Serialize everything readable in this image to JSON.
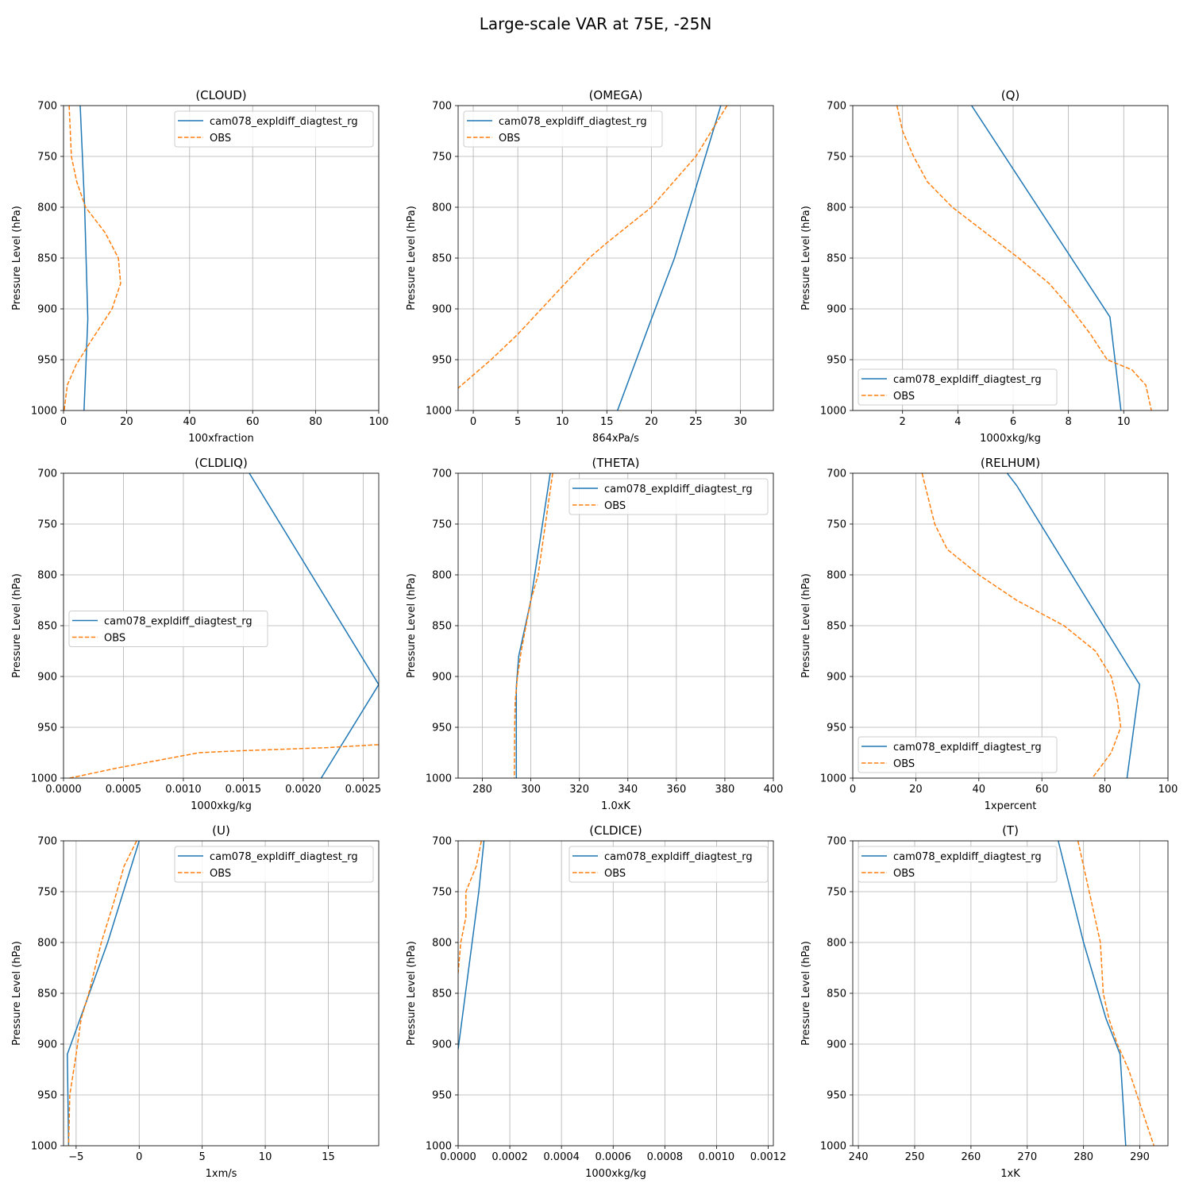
{
  "figure": {
    "title": "Large-scale VAR at 75E, -25N"
  },
  "chart_data": [
    {
      "type": "line",
      "title": "(CLOUD)",
      "xlabel": "100xfraction",
      "ylabel": "Pressure Level (hPa)",
      "xlim": [
        0,
        100
      ],
      "ylim": [
        1000,
        700
      ],
      "xticks": [
        0,
        20,
        40,
        60,
        80,
        100
      ],
      "yticks": [
        700,
        750,
        800,
        850,
        900,
        950,
        1000
      ],
      "grid": true,
      "legend_loc": "upper right",
      "series": [
        {
          "name": "cam078_expldiff_diagtest_rg",
          "color": "#1f77b4",
          "dash": "solid",
          "points": [
            [
              5.3,
              700
            ],
            [
              6.7,
              800
            ],
            [
              7.7,
              910
            ],
            [
              6.5,
              1000
            ]
          ]
        },
        {
          "name": "OBS",
          "color": "#ff7f0e",
          "dash": "dashed",
          "points": [
            [
              1.8,
              700
            ],
            [
              2.5,
              750
            ],
            [
              4.2,
              775
            ],
            [
              7.0,
              800
            ],
            [
              13.2,
              825
            ],
            [
              17.4,
              850
            ],
            [
              18.1,
              875
            ],
            [
              15.4,
              900
            ],
            [
              8.0,
              935
            ],
            [
              4.0,
              955
            ],
            [
              1.2,
              975
            ],
            [
              0.2,
              1000
            ]
          ]
        }
      ]
    },
    {
      "type": "line",
      "title": "(OMEGA)",
      "xlabel": "864xPa/s",
      "ylabel": "Pressure Level (hPa)",
      "xlim": [
        -1.7,
        33.7
      ],
      "ylim": [
        1000,
        700
      ],
      "xticks": [
        0,
        5,
        10,
        15,
        20,
        25,
        30
      ],
      "yticks": [
        700,
        750,
        800,
        850,
        900,
        950,
        1000
      ],
      "grid": true,
      "legend_loc": "upper left",
      "series": [
        {
          "name": "cam078_expldiff_diagtest_rg",
          "color": "#1f77b4",
          "dash": "solid",
          "points": [
            [
              27.8,
              700
            ],
            [
              25.2,
              775
            ],
            [
              22.6,
              850
            ],
            [
              20.0,
              910
            ],
            [
              16.2,
              1000
            ]
          ]
        },
        {
          "name": "OBS",
          "color": "#ff7f0e",
          "dash": "dashed",
          "points": [
            [
              28.5,
              700
            ],
            [
              25.0,
              750
            ],
            [
              20.0,
              800
            ],
            [
              15.0,
              835
            ],
            [
              13.0,
              850
            ],
            [
              10.0,
              878
            ],
            [
              5.0,
              925
            ],
            [
              2.0,
              950
            ],
            [
              -1.7,
              978
            ]
          ]
        }
      ]
    },
    {
      "type": "line",
      "title": "(Q)",
      "xlabel": "1000xkg/kg",
      "ylabel": "Pressure Level (hPa)",
      "xlim": [
        0.2,
        11.6
      ],
      "ylim": [
        1000,
        700
      ],
      "xticks": [
        2,
        4,
        6,
        8,
        10
      ],
      "yticks": [
        700,
        750,
        800,
        850,
        900,
        950,
        1000
      ],
      "grid": true,
      "legend_loc": "lower left",
      "series": [
        {
          "name": "cam078_expldiff_diagtest_rg",
          "color": "#1f77b4",
          "dash": "solid",
          "points": [
            [
              4.5,
              700
            ],
            [
              9.5,
              908
            ],
            [
              9.9,
              1000
            ]
          ]
        },
        {
          "name": "OBS",
          "color": "#ff7f0e",
          "dash": "dashed",
          "points": [
            [
              1.8,
              700
            ],
            [
              2.0,
              725
            ],
            [
              2.4,
              750
            ],
            [
              2.9,
              775
            ],
            [
              3.8,
              800
            ],
            [
              5.0,
              825
            ],
            [
              6.2,
              850
            ],
            [
              7.3,
              875
            ],
            [
              8.1,
              900
            ],
            [
              8.8,
              925
            ],
            [
              9.4,
              950
            ],
            [
              10.3,
              960
            ],
            [
              10.8,
              975
            ],
            [
              11.0,
              1000
            ]
          ]
        }
      ]
    },
    {
      "type": "line",
      "title": "(CLDLIQ)",
      "xlabel": "1000xkg/kg",
      "ylabel": "Pressure Level (hPa)",
      "xlim": [
        0,
        0.00263
      ],
      "ylim": [
        1000,
        700
      ],
      "xticks": [
        0,
        0.0005,
        0.001,
        0.0015,
        0.002,
        0.0025
      ],
      "xtick_labels": [
        "0.0000",
        "0.0005",
        "0.0010",
        "0.0015",
        "0.0020",
        "0.0025"
      ],
      "yticks": [
        700,
        750,
        800,
        850,
        900,
        950,
        1000
      ],
      "grid": true,
      "legend_loc": "center left",
      "series": [
        {
          "name": "cam078_expldiff_diagtest_rg",
          "color": "#1f77b4",
          "dash": "solid",
          "points": [
            [
              0.00155,
              700
            ],
            [
              0.00263,
              908
            ],
            [
              0.00215,
              1000
            ]
          ]
        },
        {
          "name": "OBS",
          "color": "#ff7f0e",
          "dash": "dashed",
          "points": [
            [
              5e-05,
              1000
            ],
            [
              0.00045,
              990
            ],
            [
              0.00113,
              975
            ],
            [
              0.0015,
              973
            ],
            [
              0.0022,
              970
            ],
            [
              0.00263,
              967
            ]
          ]
        }
      ]
    },
    {
      "type": "line",
      "title": "(THETA)",
      "xlabel": "1.0xK",
      "ylabel": "Pressure Level (hPa)",
      "xlim": [
        270,
        400
      ],
      "ylim": [
        1000,
        700
      ],
      "xticks": [
        280,
        300,
        320,
        340,
        360,
        380,
        400
      ],
      "yticks": [
        700,
        750,
        800,
        850,
        900,
        950,
        1000
      ],
      "grid": true,
      "legend_loc": "upper right",
      "series": [
        {
          "name": "cam078_expldiff_diagtest_rg",
          "color": "#1f77b4",
          "dash": "solid",
          "points": [
            [
              308,
              700
            ],
            [
              300,
              825
            ],
            [
              295,
              880
            ],
            [
              294,
              910
            ],
            [
              294,
              1000
            ]
          ]
        },
        {
          "name": "OBS",
          "color": "#ff7f0e",
          "dash": "dashed",
          "points": [
            [
              309,
              700
            ],
            [
              306,
              750
            ],
            [
              303,
              800
            ],
            [
              300,
              825
            ],
            [
              298,
              850
            ],
            [
              296,
              875
            ],
            [
              294.5,
              900
            ],
            [
              293.5,
              925
            ],
            [
              293.3,
              950
            ],
            [
              293.2,
              1000
            ]
          ]
        }
      ]
    },
    {
      "type": "line",
      "title": "(RELHUM)",
      "xlabel": "1xpercent",
      "ylabel": "Pressure Level (hPa)",
      "xlim": [
        0,
        100
      ],
      "ylim": [
        1000,
        700
      ],
      "xticks": [
        0,
        20,
        40,
        60,
        80,
        100
      ],
      "yticks": [
        700,
        750,
        800,
        850,
        900,
        950,
        1000
      ],
      "grid": true,
      "legend_loc": "lower left",
      "series": [
        {
          "name": "cam078_expldiff_diagtest_rg",
          "color": "#1f77b4",
          "dash": "solid",
          "points": [
            [
              49,
              700
            ],
            [
              52,
              712
            ],
            [
              87,
              888
            ],
            [
              91,
              908
            ],
            [
              87,
              1000
            ]
          ]
        },
        {
          "name": "OBS",
          "color": "#ff7f0e",
          "dash": "dashed",
          "points": [
            [
              22,
              700
            ],
            [
              26,
              750
            ],
            [
              30,
              775
            ],
            [
              40,
              800
            ],
            [
              52,
              825
            ],
            [
              67,
              850
            ],
            [
              77,
              875
            ],
            [
              82,
              900
            ],
            [
              84,
              925
            ],
            [
              85,
              950
            ],
            [
              82,
              975
            ],
            [
              76,
              1000
            ]
          ]
        }
      ]
    },
    {
      "type": "line",
      "title": "(U)",
      "xlabel": "1xm/s",
      "ylabel": "Pressure Level (hPa)",
      "xlim": [
        -6,
        19
      ],
      "ylim": [
        1000,
        700
      ],
      "xticks": [
        -5,
        0,
        5,
        10,
        15
      ],
      "xtick_labels": [
        "−5",
        "0",
        "5",
        "10",
        "15"
      ],
      "yticks": [
        700,
        750,
        800,
        850,
        900,
        950,
        1000
      ],
      "grid": true,
      "legend_loc": "upper right",
      "series": [
        {
          "name": "cam078_expldiff_diagtest_rg",
          "color": "#1f77b4",
          "dash": "solid",
          "points": [
            [
              0,
              700
            ],
            [
              -2.5,
              800
            ],
            [
              -5.7,
              910
            ],
            [
              -5.6,
              1000
            ]
          ]
        },
        {
          "name": "OBS",
          "color": "#ff7f0e",
          "dash": "dashed",
          "points": [
            [
              -0.2,
              700
            ],
            [
              -1.2,
              725
            ],
            [
              -2.0,
              760
            ],
            [
              -3.0,
              800
            ],
            [
              -4.0,
              850
            ],
            [
              -4.6,
              875
            ],
            [
              -5.0,
              910
            ],
            [
              -5.5,
              950
            ],
            [
              -5.6,
              1000
            ]
          ]
        }
      ]
    },
    {
      "type": "line",
      "title": "(CLDICE)",
      "xlabel": "1000xkg/kg",
      "ylabel": "Pressure Level (hPa)",
      "xlim": [
        0,
        0.00122
      ],
      "ylim": [
        1000,
        700
      ],
      "xticks": [
        0,
        0.0002,
        0.0004,
        0.0006,
        0.0008,
        0.001,
        0.0012
      ],
      "xtick_labels": [
        "0.0000",
        "0.0002",
        "0.0004",
        "0.0006",
        "0.0008",
        "0.0010",
        "0.0012"
      ],
      "yticks": [
        700,
        750,
        800,
        850,
        900,
        950,
        1000
      ],
      "grid": true,
      "legend_loc": "upper right",
      "series": [
        {
          "name": "cam078_expldiff_diagtest_rg",
          "color": "#1f77b4",
          "dash": "solid",
          "points": [
            [
              0.0001,
              700
            ],
            [
              8e-05,
              750
            ],
            [
              0,
              905
            ]
          ]
        },
        {
          "name": "OBS",
          "color": "#ff7f0e",
          "dash": "dashed",
          "points": [
            [
              9e-05,
              700
            ],
            [
              7e-05,
              725
            ],
            [
              3e-05,
              750
            ],
            [
              3e-05,
              775
            ],
            [
              1e-05,
              800
            ],
            [
              0,
              830
            ]
          ]
        }
      ]
    },
    {
      "type": "line",
      "title": "(T)",
      "xlabel": "1xK",
      "ylabel": "Pressure Level (hPa)",
      "xlim": [
        239,
        295
      ],
      "ylim": [
        1000,
        700
      ],
      "xticks": [
        240,
        250,
        260,
        270,
        280,
        290
      ],
      "yticks": [
        700,
        750,
        800,
        850,
        900,
        950,
        1000
      ],
      "grid": true,
      "legend_loc": "upper left",
      "series": [
        {
          "name": "cam078_expldiff_diagtest_rg",
          "color": "#1f77b4",
          "dash": "solid",
          "points": [
            [
              275.5,
              700
            ],
            [
              280,
              800
            ],
            [
              284,
              875
            ],
            [
              286.5,
              910
            ],
            [
              287.5,
              1000
            ]
          ]
        },
        {
          "name": "OBS",
          "color": "#ff7f0e",
          "dash": "dashed",
          "points": [
            [
              279,
              700
            ],
            [
              281,
              750
            ],
            [
              282,
              775
            ],
            [
              283,
              800
            ],
            [
              283.5,
              850
            ],
            [
              284.5,
              875
            ],
            [
              286,
              900
            ],
            [
              288,
              925
            ],
            [
              289.5,
              950
            ],
            [
              291,
              975
            ],
            [
              292.5,
              1000
            ]
          ]
        }
      ]
    }
  ]
}
